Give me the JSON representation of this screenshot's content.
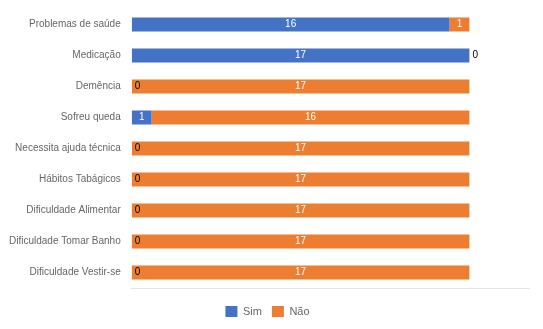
{
  "chart_data": {
    "type": "bar",
    "orientation": "horizontal",
    "stacked": true,
    "categories": [
      "Dificuldade Vestir-se",
      "Dificuldade Tomar Banho",
      "Dificuldade Alimentar",
      "Hábitos Tabágicos",
      "Necessita ajuda técnica",
      "Sofreu queda",
      "Demência",
      "Medicação",
      "Problemas de saúde"
    ],
    "series": [
      {
        "name": "Sim",
        "color": "#4472C4",
        "values": [
          0,
          0,
          0,
          0,
          0,
          1,
          0,
          17,
          16
        ]
      },
      {
        "name": "Não",
        "color": "#ED7D31",
        "values": [
          17,
          17,
          17,
          17,
          17,
          16,
          17,
          0,
          1
        ]
      }
    ],
    "xlim": [
      0,
      20
    ],
    "xticks": [],
    "tick_labels": "y",
    "grid": false,
    "legend": "bottom",
    "data_labels": true
  }
}
